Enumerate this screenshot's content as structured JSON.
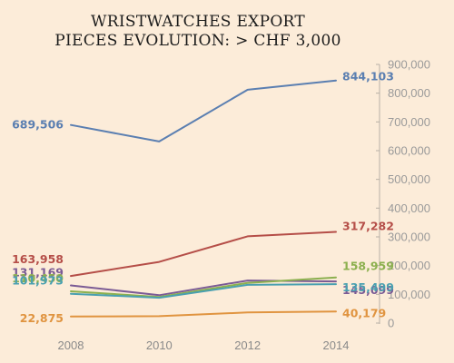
{
  "chart_data": {
    "type": "line",
    "title": [
      "WRISTWATCHES EXPORT",
      "PIECES EVOLUTION: > CHF 3,000"
    ],
    "x": [
      2008,
      2010,
      2012,
      2014
    ],
    "x_tick_labels": [
      "2008",
      "2010",
      "2012",
      "2014"
    ],
    "ylim": [
      0,
      900000
    ],
    "y_tick_labels": [
      "0",
      "100,000",
      "200,000",
      "300,000",
      "400,000",
      "500,000",
      "600,000",
      "700,000",
      "800,000",
      "900,000"
    ],
    "y_axis_side": "right",
    "grid": false,
    "series": [
      {
        "color": "#5b7fb1",
        "values": [
          689506,
          632000,
          812000,
          844103
        ],
        "start_label": "689,506",
        "end_label": "844,103"
      },
      {
        "color": "#b54e48",
        "values": [
          163958,
          213000,
          302000,
          317282
        ],
        "start_label": "163,958",
        "end_label": "317,282"
      },
      {
        "color": "#7b5b95",
        "values": [
          131169,
          97000,
          148000,
          145099
        ],
        "start_label": "131,169",
        "end_label": "145,099"
      },
      {
        "color": "#8cb04f",
        "values": [
          110450,
          91000,
          140000,
          158959
        ],
        "start_label": "110,450",
        "end_label": "158,959"
      },
      {
        "color": "#4aa0b0",
        "values": [
          101973,
          88000,
          133000,
          135499
        ],
        "start_label": "101,973",
        "end_label": "135,499"
      },
      {
        "color": "#e09440",
        "values": [
          22875,
          24000,
          37000,
          40179
        ],
        "start_label": "22,875",
        "end_label": "40,179"
      }
    ]
  }
}
